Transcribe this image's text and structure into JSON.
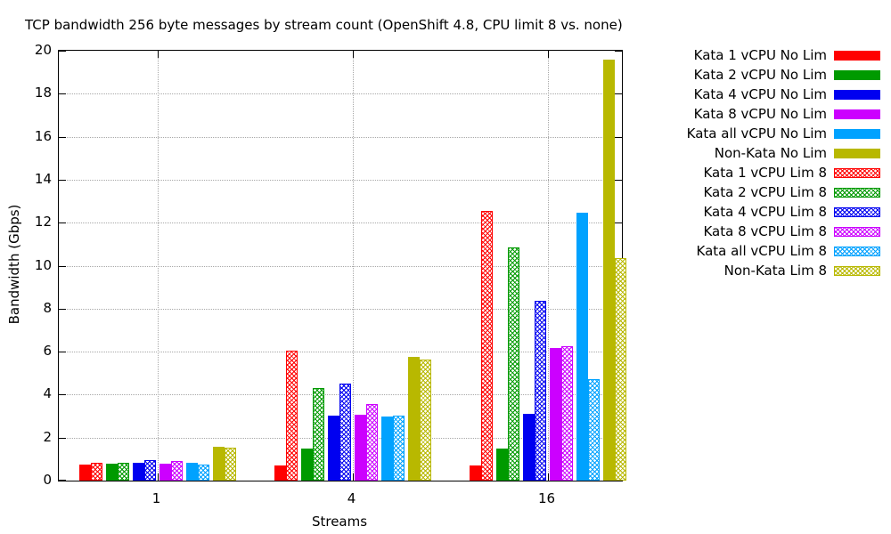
{
  "window": {
    "background": "#ffffff"
  },
  "chart_data": {
    "type": "bar",
    "title": "TCP bandwidth 256 byte messages by stream count (OpenShift 4.8, CPU limit 8 vs. none)",
    "xlabel": "Streams",
    "ylabel": "Bandwidth (Gbps)",
    "ylim": [
      0,
      20
    ],
    "yticks": [
      0,
      2,
      4,
      6,
      8,
      10,
      12,
      14,
      16,
      18,
      20
    ],
    "grid": "dotted gray horizontal lines at each y tick; dotted vertical line at each category center",
    "legend_position": "outside-right-top",
    "categories": [
      "1",
      "4",
      "16"
    ],
    "bar_order_note": "bars grouped in pairs per color: solid 'No Lim' bar immediately followed by crosshatched 'Lim 8' bar",
    "series": [
      {
        "name": "Kata 1 vCPU No Lim",
        "color": "#ff0000",
        "pattern": "solid",
        "values": [
          0.73,
          0.72,
          0.72
        ]
      },
      {
        "name": "Kata 2 vCPU No Lim",
        "color": "#009a00",
        "pattern": "solid",
        "values": [
          0.79,
          1.48,
          1.5
        ]
      },
      {
        "name": "Kata 4 vCPU No Lim",
        "color": "#0000f0",
        "pattern": "solid",
        "values": [
          0.82,
          3.02,
          3.12
        ]
      },
      {
        "name": "Kata 8 vCPU No Lim",
        "color": "#cc00ff",
        "pattern": "solid",
        "values": [
          0.8,
          3.07,
          6.15
        ]
      },
      {
        "name": "Kata all vCPU No Lim",
        "color": "#00a2ff",
        "pattern": "solid",
        "values": [
          0.81,
          3.0,
          12.45
        ]
      },
      {
        "name": "Non-Kata No Lim",
        "color": "#b8b800",
        "pattern": "solid",
        "values": [
          1.58,
          5.75,
          19.6
        ]
      },
      {
        "name": "Kata 1 vCPU Lim 8",
        "color": "#ff0000",
        "pattern": "crosshatch",
        "values": [
          0.84,
          6.05,
          12.55
        ]
      },
      {
        "name": "Kata 2 vCPU Lim 8",
        "color": "#009a00",
        "pattern": "crosshatch",
        "values": [
          0.81,
          4.3,
          10.85
        ]
      },
      {
        "name": "Kata 4 vCPU Lim 8",
        "color": "#0000f0",
        "pattern": "crosshatch",
        "values": [
          0.94,
          4.52,
          8.35
        ]
      },
      {
        "name": "Kata 8 vCPU Lim 8",
        "color": "#cc00ff",
        "pattern": "crosshatch",
        "values": [
          0.9,
          3.55,
          6.25
        ]
      },
      {
        "name": "Kata all vCPU Lim 8",
        "color": "#00a2ff",
        "pattern": "crosshatch",
        "values": [
          0.76,
          3.03,
          4.73
        ]
      },
      {
        "name": "Non-Kata Lim 8",
        "color": "#b8b800",
        "pattern": "crosshatch",
        "values": [
          1.54,
          5.65,
          10.35
        ]
      }
    ]
  }
}
